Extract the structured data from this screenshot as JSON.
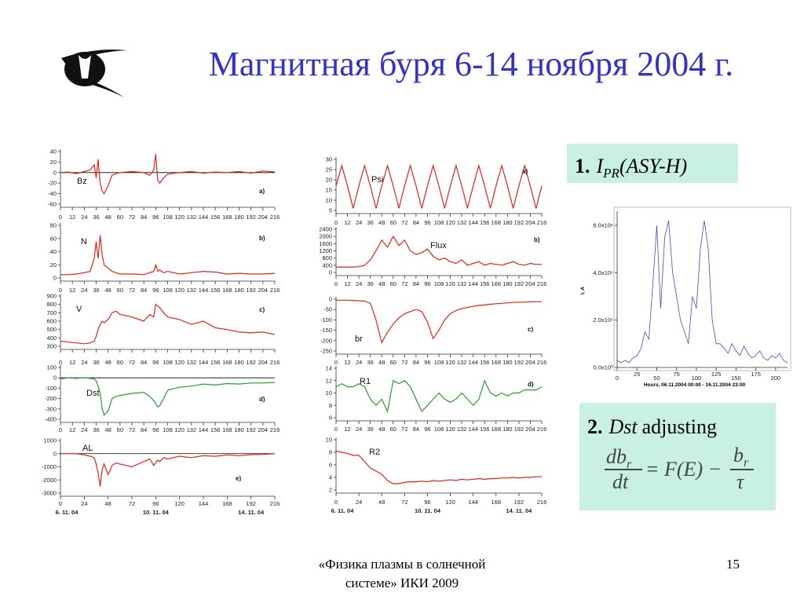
{
  "slide": {
    "title": "Магнитная буря 6-14 ноября 2004 г.",
    "footer": [
      "«Физика плазмы в солнечной",
      "системе» ИКИ 2009"
    ],
    "page_number": "15",
    "box1": {
      "number": "1.",
      "symbol": "I",
      "subscript": "PR",
      "argument": "(ASY-H)"
    },
    "box2": {
      "number": "2.",
      "name": "Dst",
      "text": "adjusting",
      "formula": {
        "num": "db",
        "num_sub": "r",
        "den": "dt",
        "middle": "= F(E) −",
        "num2": "b",
        "num2_sub": "r",
        "den2": "τ"
      }
    }
  },
  "chart_data": [
    {
      "type": "line",
      "label": "Bz",
      "panel": "a)",
      "color": "#e3241c",
      "x": [
        0,
        8,
        16,
        24,
        30,
        34,
        36,
        38,
        40,
        42,
        44,
        48,
        52,
        56,
        60,
        72,
        84,
        90,
        94,
        96,
        98,
        100,
        104,
        108,
        120,
        132,
        144,
        156,
        168,
        180,
        192,
        204,
        216
      ],
      "values": [
        0,
        1,
        -2,
        2,
        5,
        15,
        -10,
        25,
        -20,
        -35,
        -40,
        -25,
        -5,
        -2,
        0,
        2,
        0,
        -5,
        5,
        35,
        -15,
        -20,
        -10,
        -3,
        0,
        2,
        -1,
        1,
        0,
        2,
        -1,
        3,
        1
      ],
      "xlim": [
        0,
        216
      ],
      "ylim": [
        -60,
        40
      ],
      "yticks": [
        -60,
        -40,
        -20,
        0,
        20,
        40
      ],
      "xticks": [
        0,
        12,
        24,
        36,
        48,
        60,
        72,
        84,
        96,
        108,
        120,
        132,
        144,
        156,
        168,
        180,
        192,
        204,
        216
      ]
    },
    {
      "type": "line",
      "label": "N",
      "panel": "b)",
      "color": "#e3241c",
      "x": [
        0,
        8,
        16,
        24,
        30,
        34,
        36,
        38,
        40,
        42,
        44,
        48,
        52,
        56,
        60,
        72,
        84,
        90,
        94,
        96,
        98,
        100,
        104,
        108,
        120,
        132,
        144,
        156,
        168,
        180,
        192,
        204,
        216
      ],
      "values": [
        5,
        5,
        6,
        8,
        10,
        30,
        55,
        30,
        65,
        35,
        20,
        15,
        10,
        8,
        6,
        6,
        5,
        8,
        10,
        20,
        10,
        12,
        8,
        10,
        6,
        8,
        10,
        9,
        6,
        7,
        6,
        6,
        7
      ],
      "xlim": [
        0,
        216
      ],
      "ylim": [
        0,
        80
      ],
      "yticks": [
        0,
        20,
        40,
        60,
        80
      ],
      "xticks": [
        0,
        12,
        24,
        36,
        48,
        60,
        72,
        84,
        96,
        108,
        120,
        132,
        144,
        156,
        168,
        180,
        192,
        204,
        216
      ]
    },
    {
      "type": "line",
      "label": "V",
      "panel": "c)",
      "color": "#e3241c",
      "x": [
        0,
        8,
        16,
        24,
        30,
        34,
        36,
        38,
        40,
        42,
        44,
        48,
        52,
        56,
        60,
        72,
        84,
        90,
        94,
        96,
        98,
        100,
        104,
        108,
        120,
        132,
        144,
        156,
        168,
        180,
        192,
        204,
        216
      ],
      "values": [
        360,
        350,
        340,
        330,
        340,
        360,
        420,
        500,
        560,
        600,
        580,
        620,
        700,
        720,
        680,
        650,
        600,
        680,
        650,
        800,
        780,
        760,
        700,
        650,
        620,
        560,
        600,
        520,
        500,
        470,
        460,
        470,
        440
      ],
      "xlim": [
        0,
        216
      ],
      "ylim": [
        300,
        900
      ],
      "yticks": [
        300,
        400,
        500,
        600,
        700,
        800,
        900
      ],
      "xticks": [
        0,
        12,
        24,
        36,
        48,
        60,
        72,
        84,
        96,
        108,
        120,
        132,
        144,
        156,
        168,
        180,
        192,
        204,
        216
      ]
    },
    {
      "type": "line",
      "label": "Dst",
      "panel": "d)",
      "color": "#2e9a2e",
      "x": [
        0,
        8,
        16,
        24,
        30,
        34,
        36,
        38,
        40,
        42,
        44,
        48,
        52,
        56,
        60,
        72,
        84,
        90,
        94,
        96,
        98,
        100,
        104,
        108,
        120,
        132,
        144,
        156,
        168,
        180,
        192,
        204,
        216
      ],
      "values": [
        -10,
        0,
        -5,
        0,
        -5,
        -10,
        -30,
        -80,
        -150,
        -300,
        -360,
        -320,
        -200,
        -180,
        -170,
        -150,
        -140,
        -180,
        -220,
        -250,
        -280,
        -270,
        -200,
        -120,
        -90,
        -80,
        -60,
        -70,
        -55,
        -60,
        -50,
        -50,
        -45
      ],
      "xlim": [
        0,
        216
      ],
      "ylim": [
        -400,
        100
      ],
      "yticks": [
        -400,
        -300,
        -200,
        -100,
        0,
        100
      ],
      "xticks": [
        0,
        12,
        24,
        36,
        48,
        60,
        72,
        84,
        96,
        108,
        120,
        132,
        144,
        156,
        168,
        180,
        192,
        204,
        216
      ]
    },
    {
      "type": "line",
      "label": "AL",
      "panel": "e)",
      "color": "#e3241c",
      "x": [
        0,
        8,
        16,
        24,
        30,
        34,
        36,
        38,
        40,
        42,
        44,
        48,
        52,
        56,
        60,
        72,
        84,
        90,
        94,
        96,
        98,
        100,
        104,
        108,
        120,
        132,
        144,
        156,
        168,
        180,
        192,
        204,
        216
      ],
      "values": [
        0,
        0,
        0,
        -100,
        -200,
        -300,
        -800,
        -1500,
        -2500,
        -1200,
        -800,
        -1600,
        -900,
        -700,
        -800,
        -1000,
        -600,
        -400,
        -900,
        -700,
        -500,
        -600,
        -300,
        -400,
        -200,
        -300,
        -150,
        -200,
        -100,
        -150,
        -80,
        -60,
        0
      ],
      "xlim": [
        0,
        216
      ],
      "ylim": [
        -3000,
        1000
      ],
      "yticks": [
        -3000,
        -2000,
        -1000,
        0,
        1000
      ],
      "xticks": [
        0,
        24,
        48,
        72,
        96,
        120,
        144,
        168,
        192,
        216
      ],
      "dates": [
        {
          "value": 0,
          "label": "6. 11. 04"
        },
        {
          "value": 96,
          "label": "10. 11. 04"
        },
        {
          "value": 192,
          "label": "14. 11. 04"
        }
      ]
    },
    {
      "type": "line",
      "label": "Psi",
      "panel": "a)",
      "color": "#e3241c",
      "x": [
        0,
        6,
        12,
        18,
        24,
        30,
        36,
        42,
        48,
        54,
        60,
        66,
        72,
        78,
        84,
        90,
        96,
        102,
        108,
        114,
        120,
        126,
        132,
        138,
        144,
        150,
        156,
        162,
        168,
        174,
        180,
        186,
        192,
        198,
        204,
        210,
        216
      ],
      "values": [
        17,
        27,
        17,
        6,
        17,
        27,
        17,
        6,
        17,
        27,
        17,
        6,
        17,
        27,
        17,
        6,
        17,
        27,
        17,
        6,
        17,
        27,
        17,
        6,
        17,
        27,
        17,
        6,
        17,
        27,
        17,
        6,
        17,
        27,
        17,
        6,
        17
      ],
      "xlim": [
        0,
        216
      ],
      "ylim": [
        5,
        30
      ],
      "yticks": [
        5,
        10,
        15,
        20,
        25,
        30
      ],
      "xticks": [
        0,
        12,
        24,
        36,
        48,
        60,
        72,
        84,
        96,
        108,
        120,
        132,
        144,
        156,
        168,
        180,
        192,
        204,
        216
      ]
    },
    {
      "type": "line",
      "label": "Flux",
      "panel": "b)",
      "color": "#e3241c",
      "x": [
        0,
        6,
        12,
        18,
        24,
        30,
        36,
        42,
        48,
        54,
        60,
        66,
        72,
        78,
        84,
        90,
        96,
        102,
        108,
        114,
        120,
        126,
        132,
        138,
        144,
        150,
        156,
        162,
        168,
        174,
        180,
        186,
        192,
        198,
        204,
        210,
        216
      ],
      "values": [
        300,
        300,
        300,
        300,
        320,
        400,
        700,
        1200,
        1800,
        1400,
        2000,
        1500,
        1800,
        1200,
        1000,
        1100,
        1300,
        900,
        700,
        800,
        600,
        500,
        700,
        400,
        500,
        600,
        400,
        500,
        450,
        400,
        500,
        600,
        450,
        400,
        500,
        450,
        450
      ],
      "xlim": [
        0,
        216
      ],
      "ylim": [
        0,
        2400
      ],
      "yticks": [
        0,
        400,
        800,
        1200,
        1600,
        2000,
        2400
      ],
      "xticks": [
        0,
        12,
        24,
        36,
        48,
        60,
        72,
        84,
        96,
        108,
        120,
        132,
        144,
        156,
        168,
        180,
        192,
        204,
        216
      ]
    },
    {
      "type": "line",
      "label": "br",
      "panel": "c)",
      "color": "#e3241c",
      "x": [
        0,
        6,
        12,
        18,
        24,
        30,
        36,
        42,
        48,
        54,
        60,
        66,
        72,
        78,
        84,
        90,
        96,
        102,
        108,
        114,
        120,
        126,
        132,
        138,
        144,
        150,
        156,
        162,
        168,
        174,
        180,
        186,
        192,
        198,
        204,
        210,
        216
      ],
      "values": [
        -5,
        -5,
        -5,
        -6,
        -8,
        -10,
        -20,
        -100,
        -210,
        -160,
        -120,
        -90,
        -70,
        -60,
        -50,
        -60,
        -110,
        -190,
        -150,
        -100,
        -70,
        -55,
        -45,
        -40,
        -35,
        -30,
        -28,
        -25,
        -22,
        -20,
        -18,
        -16,
        -15,
        -14,
        -13,
        -12,
        -12
      ],
      "xlim": [
        0,
        216
      ],
      "ylim": [
        -250,
        0
      ],
      "yticks": [
        0,
        -50,
        -100,
        -150,
        -200,
        -250
      ],
      "xticks": [
        0,
        12,
        24,
        36,
        48,
        60,
        72,
        84,
        96,
        108,
        120,
        132,
        144,
        156,
        168,
        180,
        192,
        204,
        216
      ]
    },
    {
      "type": "line",
      "label": "R1",
      "panel": "d)",
      "color": "#2e9a2e",
      "x": [
        0,
        6,
        12,
        18,
        24,
        30,
        36,
        42,
        48,
        54,
        60,
        66,
        72,
        78,
        84,
        90,
        96,
        102,
        108,
        114,
        120,
        126,
        132,
        138,
        144,
        150,
        156,
        162,
        168,
        174,
        180,
        186,
        192,
        198,
        204,
        210,
        216
      ],
      "values": [
        11,
        11.5,
        11,
        11,
        11.5,
        11,
        9,
        8,
        9,
        7,
        12,
        11.5,
        12,
        11,
        9,
        7,
        8,
        9,
        10,
        9,
        8.5,
        9,
        10,
        9,
        8,
        9,
        12,
        10,
        9.5,
        10,
        9.5,
        10,
        10,
        10.5,
        10.5,
        10.5,
        11
      ],
      "xlim": [
        0,
        216
      ],
      "ylim": [
        6,
        14
      ],
      "yticks": [
        6,
        8,
        10,
        12,
        14
      ],
      "xticks": [
        0,
        12,
        24,
        36,
        48,
        60,
        72,
        84,
        96,
        108,
        120,
        132,
        144,
        156,
        168,
        180,
        192,
        204,
        216
      ]
    },
    {
      "type": "line",
      "label": "R2",
      "color": "#e3241c",
      "x": [
        0,
        6,
        12,
        18,
        24,
        30,
        36,
        42,
        48,
        54,
        60,
        66,
        72,
        78,
        84,
        90,
        96,
        102,
        108,
        114,
        120,
        126,
        132,
        138,
        144,
        150,
        156,
        162,
        168,
        174,
        180,
        186,
        192,
        198,
        204,
        210,
        216
      ],
      "values": [
        8.2,
        8,
        7.8,
        7.5,
        7.5,
        6.5,
        5.5,
        5,
        4.5,
        3.5,
        3,
        3,
        3.2,
        3.3,
        3.3,
        3.4,
        3.3,
        3.5,
        3.4,
        3.5,
        3.6,
        3.5,
        3.7,
        3.6,
        3.7,
        3.8,
        3.7,
        3.8,
        3.8,
        3.9,
        3.9,
        4,
        3.9,
        4,
        4,
        4.1,
        4.1
      ],
      "xlim": [
        0,
        216
      ],
      "ylim": [
        2,
        10
      ],
      "yticks": [
        2,
        4,
        6,
        8,
        10
      ],
      "xticks": [
        0,
        24,
        48,
        72,
        96,
        120,
        144,
        168,
        192,
        216
      ],
      "dates": [
        {
          "value": 0,
          "label": "6. 11. 04"
        },
        {
          "value": 96,
          "label": "10. 11. 04"
        },
        {
          "value": 192,
          "label": "14. 11. 04"
        }
      ]
    },
    {
      "type": "line",
      "color": "#4a4ab8",
      "xlabel": "Hours, 06.11.2004 00:00 - 16.11.2004 23:00",
      "ylabel": "I, A",
      "x": [
        0,
        5,
        10,
        15,
        20,
        25,
        30,
        35,
        40,
        45,
        50,
        55,
        60,
        65,
        70,
        75,
        80,
        85,
        90,
        95,
        100,
        105,
        110,
        115,
        120,
        125,
        130,
        135,
        140,
        145,
        150,
        155,
        160,
        165,
        170,
        175,
        180,
        185,
        190,
        195,
        200,
        205,
        210,
        215
      ],
      "values": [
        300000,
        200000,
        300000,
        200000,
        400000,
        500000,
        800000,
        1500000,
        1200000,
        3500000,
        6000000,
        2500000,
        5500000,
        6200000,
        4000000,
        3000000,
        2000000,
        1500000,
        1000000,
        3000000,
        2500000,
        5000000,
        6200000,
        5000000,
        2000000,
        1000000,
        1000000,
        800000,
        600000,
        1000000,
        700000,
        500000,
        900000,
        600000,
        400000,
        500000,
        700000,
        400000,
        300000,
        500000,
        400000,
        600000,
        300000,
        200000
      ],
      "xlim": [
        0,
        215
      ],
      "ylim": [
        0,
        6500000
      ],
      "xticks": [
        0,
        25,
        50,
        75,
        100,
        125,
        150,
        175,
        200
      ],
      "yticks": [
        {
          "value": 0,
          "label": "0.0x10⁰"
        },
        {
          "value": 2000000,
          "label": "2.0x10⁶"
        },
        {
          "value": 4000000,
          "label": "4.0x10⁶"
        },
        {
          "value": 6000000,
          "label": "6.0x10⁶"
        }
      ]
    }
  ]
}
